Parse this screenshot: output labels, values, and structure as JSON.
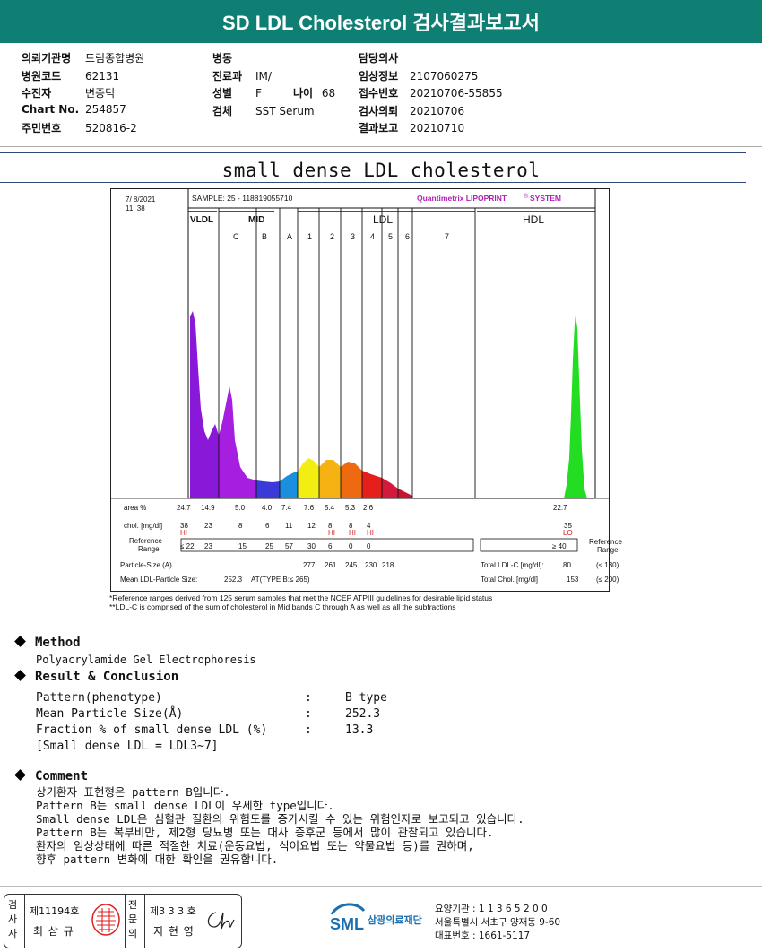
{
  "report": {
    "title": "SD LDL Cholesterol 검사결과보고서",
    "col1": [
      {
        "label": "의뢰기관명",
        "value": "드림종합병원"
      },
      {
        "label": "병원코드",
        "value": "62131"
      },
      {
        "label": "수진자",
        "value": "변종덕"
      },
      {
        "label": "Chart No.",
        "value": "254857"
      },
      {
        "label": "주민번호",
        "value": "520816-2"
      }
    ],
    "col2": [
      {
        "label": "병동",
        "value": ""
      },
      {
        "label": "진료과",
        "value": "IM/"
      },
      {
        "label": "성별",
        "value": "F"
      },
      {
        "label": "검체",
        "value": "SST Serum"
      }
    ],
    "age": {
      "label": "나이",
      "value": "68"
    },
    "col3": [
      {
        "label": "담당의사",
        "value": ""
      },
      {
        "label": "임상정보",
        "value": "2107060275"
      },
      {
        "label": "접수번호",
        "value": "20210706-55855"
      },
      {
        "label": "검사의뢰",
        "value": "20210706"
      },
      {
        "label": "결과보고",
        "value": "20210710"
      }
    ]
  },
  "section_title": "small dense LDL cholesterol",
  "chart": {
    "date": "7/  8/2021",
    "time": "11: 38",
    "sample": "SAMPLE:  25 - 118819055710",
    "brand": "Quantimetrix LIPOPRINT",
    "brand_sup": "®",
    "brand_end": "SYSTEM",
    "groups": {
      "vldl": "VLDL",
      "mid": "MID",
      "ldl": "LDL",
      "hdl": "HDL"
    },
    "bands": [
      "C",
      "B",
      "A",
      "1",
      "2",
      "3",
      "4",
      "5",
      "6",
      "7"
    ],
    "area_label": "area %",
    "area_values": [
      "24.7",
      "14.9",
      "5.0",
      "4.0",
      "7.4",
      "7.6",
      "5.4",
      "5.3",
      "2.6"
    ],
    "hdl_area": "22.7",
    "chol_label": "chol. [mg/dl]",
    "chol_values": [
      "38",
      "23",
      "8",
      "6",
      "11",
      "12",
      "8",
      "8",
      "4"
    ],
    "chol_flags": [
      "HI",
      "",
      "",
      "",
      "",
      "",
      "HI",
      "HI",
      "HI"
    ],
    "hdl_chol": "35",
    "hdl_flag": "LO",
    "ref_label": "Reference\nRange",
    "ref_values": [
      "≤ 22",
      "23",
      "15",
      "25",
      "57",
      "30",
      "6",
      "0",
      "0"
    ],
    "hdl_ref": "≥  40",
    "ref_label_right": "Reference\nRange",
    "particle_label": "Particle-Size (A)",
    "particle_values": [
      "277",
      "261",
      "245",
      "230",
      "218"
    ],
    "mean_label": "Mean LDL-Particle Size:",
    "mean_value": "252.3",
    "mean_type": "AT(TYPE B:≤ 265)",
    "total_ldl_label": "Total LDL-C [mg/dl]:",
    "total_ldl_value": "80",
    "total_ldl_ref": "(≤ 130)",
    "total_chol_label": "Total Chol. [mg/dl]",
    "total_chol_value": "153",
    "total_chol_ref": "(≤ 200)",
    "footnote1": "*Reference ranges derived from 125 serum samples that met the NCEP ATPIII guidelines for desirable lipid status",
    "footnote2": "**LDL-C is comprised of the sum of cholesterol in Mid bands C through A as well as all the subfractions",
    "colors": {
      "vldl": "#8a18d8",
      "c": "#a61ee0",
      "b": "#3a3ad8",
      "a": "#1a8fe0",
      "l1": "#f2ee12",
      "l2": "#f6b212",
      "l3": "#ee6a10",
      "l4": "#e5201c",
      "l5": "#d41a3c",
      "l6": "#c41830",
      "hdl": "#22dd22"
    }
  },
  "method": {
    "title": "Method",
    "text": "Polyacrylamide Gel Electrophoresis"
  },
  "result": {
    "title": "Result & Conclusion",
    "rows": [
      {
        "label": "Pattern(phenotype)",
        "value": "B type"
      },
      {
        "label": "Mean Particle Size(Å)",
        "value": "252.3"
      },
      {
        "label": "Fraction % of small dense LDL (%)",
        "value": "13.3"
      }
    ],
    "note": "[Small dense LDL = LDL3~7]"
  },
  "comment": {
    "title": "Comment",
    "lines": [
      "상기환자 표현형은 pattern B입니다.",
      "Pattern B는 small dense LDL이 우세한 type입니다.",
      "Small dense LDL은 심혈관 질환의 위험도를 증가시킬 수 있는 위험인자로 보고되고 있습니다.",
      "Pattern B는 복부비만, 제2형 당뇨병 또는 대사 증후군 등에서 많이 관찰되고 있습니다.",
      "환자의 임상상태에 따른 적절한 치료(운동요법, 식이요법 또는 약물요법 등)를 권하며,",
      "향후 pattern 변화에 대한 확인을 권유합니다."
    ]
  },
  "signature": {
    "side1": "검사자",
    "num1": "제11194호",
    "name1": "최 삼 규",
    "side2": "전문의",
    "num2": "제3 3 3 호",
    "name2": "지 현 영"
  },
  "lab": {
    "logo": "SML",
    "name": "삼광의료재단",
    "code": "요양기관 : 1 1 3 6 5 2 0 0",
    "address": "서울특별시 서초구 양재동 9-60",
    "phone": "대표번호 : 1661-5117"
  }
}
